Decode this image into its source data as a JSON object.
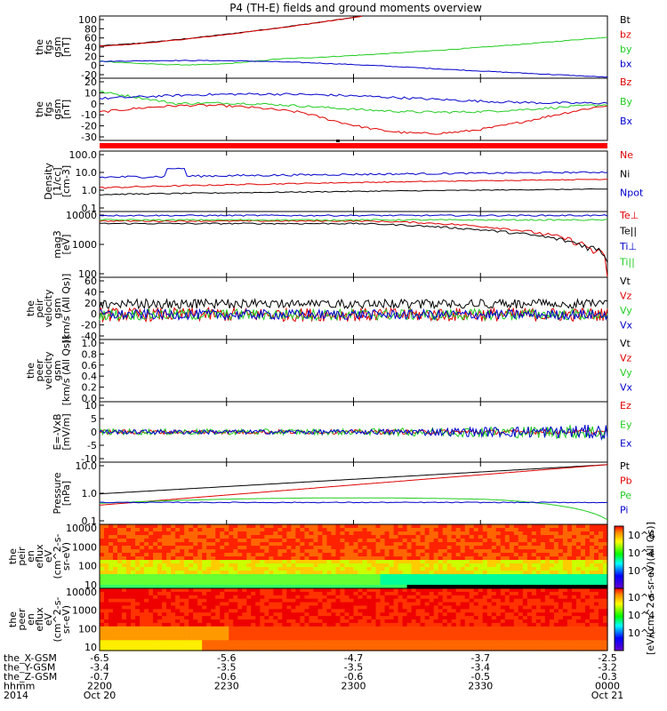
{
  "title": "P4 (TH-E) fields and ground moments overview",
  "colors": {
    "black": "#000000",
    "red": "#e00000",
    "green": "#22cc22",
    "blue": "#0000cc"
  },
  "chart_data": [
    {
      "id": "p1",
      "type": "line",
      "ylabel": [
        "the",
        "fgs",
        "gsm",
        "[nT]"
      ],
      "ylim": [
        -30,
        100
      ],
      "yticks": [
        "100",
        "80",
        "60",
        "40",
        "20",
        "0",
        "-20"
      ],
      "series": [
        {
          "name": "Bt",
          "color": "black"
        },
        {
          "name": "bz",
          "color": "red"
        },
        {
          "name": "by",
          "color": "green"
        },
        {
          "name": "bx",
          "color": "blue"
        }
      ]
    },
    {
      "id": "p2",
      "type": "line",
      "ylabel": [
        "the",
        "fgs",
        "gsm",
        "[nT]"
      ],
      "ylim": [
        -35,
        20
      ],
      "yticks": [
        "20",
        "10",
        "0",
        "-10",
        "-20",
        "-30"
      ],
      "series": [
        {
          "name": "Bz",
          "color": "red"
        },
        {
          "name": "By",
          "color": "green"
        },
        {
          "name": "Bx",
          "color": "blue"
        }
      ]
    },
    {
      "id": "p4",
      "type": "line",
      "ylabel": [
        "Density",
        "[1/cc]",
        "[cm-3]"
      ],
      "ylim": [
        0.1,
        100
      ],
      "log": true,
      "yticks": [
        "100.0",
        "10.0",
        "1.0",
        "0.1"
      ],
      "series": [
        {
          "name": "Ne",
          "color": "red"
        },
        {
          "name": "Ni",
          "color": "black"
        },
        {
          "name": "Npot",
          "color": "blue"
        }
      ]
    },
    {
      "id": "p5",
      "type": "line",
      "ylabel": [
        "mag3",
        "[eV]"
      ],
      "ylim": [
        100,
        12000
      ],
      "log": true,
      "yticks": [
        "10000",
        "1000",
        "100"
      ],
      "series": [
        {
          "name": "Te⊥",
          "color": "red"
        },
        {
          "name": "Te||",
          "color": "black"
        },
        {
          "name": "Ti⊥",
          "color": "blue"
        },
        {
          "name": "Ti||",
          "color": "green"
        }
      ]
    },
    {
      "id": "p6",
      "type": "line",
      "ylabel": [
        "the",
        "peir",
        "velocity",
        "gsm",
        "[km/s (All Qs)]"
      ],
      "ylim": [
        -40,
        60
      ],
      "yticks": [
        "60",
        "40",
        "20",
        "0",
        "-20",
        "-40"
      ],
      "series": [
        {
          "name": "Vt",
          "color": "black"
        },
        {
          "name": "Vz",
          "color": "red"
        },
        {
          "name": "Vy",
          "color": "green"
        },
        {
          "name": "Vx",
          "color": "blue"
        }
      ]
    },
    {
      "id": "p7",
      "type": "line",
      "ylabel": [
        "the",
        "peer",
        "velocity",
        "gsm",
        "[km/s (All Qs)]"
      ],
      "ylim": [
        0,
        1
      ],
      "yticks": [
        "1.0",
        "0.8",
        "0.6",
        "0.4",
        "0.2",
        "0.0"
      ],
      "series": [
        {
          "name": "Vt",
          "color": "black"
        },
        {
          "name": "Vz",
          "color": "red"
        },
        {
          "name": "Vy",
          "color": "green"
        },
        {
          "name": "Vx",
          "color": "blue"
        }
      ]
    },
    {
      "id": "p8",
      "type": "line",
      "ylabel": [
        "E=-VxB",
        "[mV/m]"
      ],
      "ylim": [
        -10,
        10
      ],
      "yticks": [
        "10",
        "5",
        "0",
        "-5",
        "-10"
      ],
      "series": [
        {
          "name": "Ez",
          "color": "red"
        },
        {
          "name": "Ey",
          "color": "green"
        },
        {
          "name": "Ex",
          "color": "blue"
        }
      ]
    },
    {
      "id": "p9",
      "type": "line",
      "ylabel": [
        "Pressure",
        "[nPa]"
      ],
      "ylim": [
        0.1,
        25
      ],
      "log": true,
      "yticks": [
        "10.0",
        "1.0",
        "0.1"
      ],
      "series": [
        {
          "name": "Pt",
          "color": "black"
        },
        {
          "name": "Pb",
          "color": "red"
        },
        {
          "name": "Pe",
          "color": "green"
        },
        {
          "name": "Pi",
          "color": "blue"
        }
      ]
    },
    {
      "id": "p10",
      "type": "heatmap",
      "ylabel": [
        "the",
        "peir",
        "en",
        "eflux",
        "eV",
        "(cm^2-s-",
        "sr-eV)"
      ],
      "yticks": [
        "10000",
        "1000",
        "100",
        "10"
      ]
    },
    {
      "id": "p11",
      "type": "heatmap",
      "ylabel": [
        "the",
        "peer",
        "en",
        "eflux",
        "eV",
        "(cm^2-s-",
        "sr-eV)"
      ],
      "yticks": [
        "10000",
        "1000",
        "100",
        "10"
      ]
    }
  ],
  "colorbar": {
    "label": "[eV/(cm^2-s-sr-eV)(All Qs)]",
    "ticks": [
      "10^6",
      "10^4",
      "10^2",
      "10^6",
      "10^4",
      "10^2"
    ]
  },
  "x_axis": {
    "rows": [
      {
        "label": "the_X-GSM",
        "values": [
          "-6.5",
          "-5.6",
          "-4.7",
          "-3.7",
          "-2.5"
        ]
      },
      {
        "label": "the_Y-GSM",
        "values": [
          "-3.4",
          "-3.5",
          "-3.5",
          "-3.4",
          "-3.2"
        ]
      },
      {
        "label": "the_Z-GSM",
        "values": [
          "-0.7",
          "-0.6",
          "-0.6",
          "-0.5",
          "-0.3"
        ]
      },
      {
        "label": "hhmm",
        "values": [
          "2200",
          "2230",
          "2300",
          "2330",
          "0000"
        ]
      },
      {
        "label": "2014",
        "values": [
          "Oct 20",
          "",
          "",
          "",
          "Oct 21"
        ]
      }
    ]
  }
}
